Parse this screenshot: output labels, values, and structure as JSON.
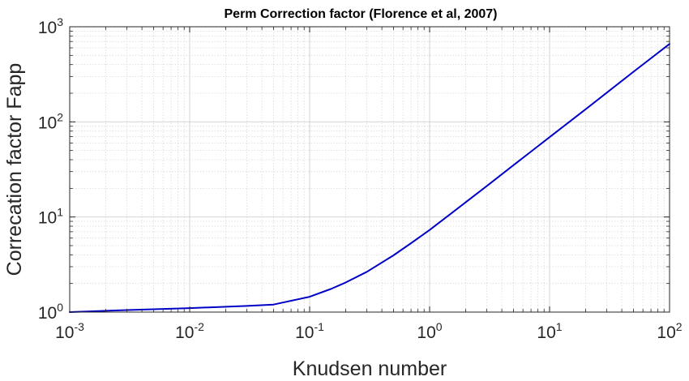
{
  "chart_data": {
    "type": "line",
    "title": "Perm Correction factor (Florence et al, 2007)",
    "xlabel": "Knudsen number",
    "ylabel": "Correcation factor Fapp",
    "x_scale": "log",
    "y_scale": "log",
    "xlim": [
      0.001,
      100
    ],
    "ylim": [
      1,
      1000
    ],
    "grid": true,
    "minor_grid": true,
    "x_ticks": [
      {
        "base": "10",
        "exp": "-3",
        "value": 0.001
      },
      {
        "base": "10",
        "exp": "-2",
        "value": 0.01
      },
      {
        "base": "10",
        "exp": "-1",
        "value": 0.1
      },
      {
        "base": "10",
        "exp": "0",
        "value": 1
      },
      {
        "base": "10",
        "exp": "1",
        "value": 10
      },
      {
        "base": "10",
        "exp": "2",
        "value": 100
      }
    ],
    "y_ticks": [
      {
        "base": "10",
        "exp": "0",
        "value": 1
      },
      {
        "base": "10",
        "exp": "1",
        "value": 10
      },
      {
        "base": "10",
        "exp": "2",
        "value": 100
      },
      {
        "base": "10",
        "exp": "3",
        "value": 1000
      }
    ],
    "series": [
      {
        "color": "#0000c8",
        "x": [
          0.001,
          0.003,
          0.01,
          0.03,
          0.05,
          0.1,
          0.15,
          0.2,
          0.3,
          0.5,
          0.7,
          1,
          1.5,
          2,
          3,
          5,
          7,
          10,
          20,
          30,
          50,
          100
        ],
        "y": [
          1.0,
          1.05,
          1.1,
          1.16,
          1.2,
          1.45,
          1.75,
          2.05,
          2.65,
          3.95,
          5.3,
          7.3,
          10.8,
          14.3,
          21.2,
          35,
          48.7,
          69,
          136,
          203,
          336,
          660
        ]
      }
    ]
  }
}
